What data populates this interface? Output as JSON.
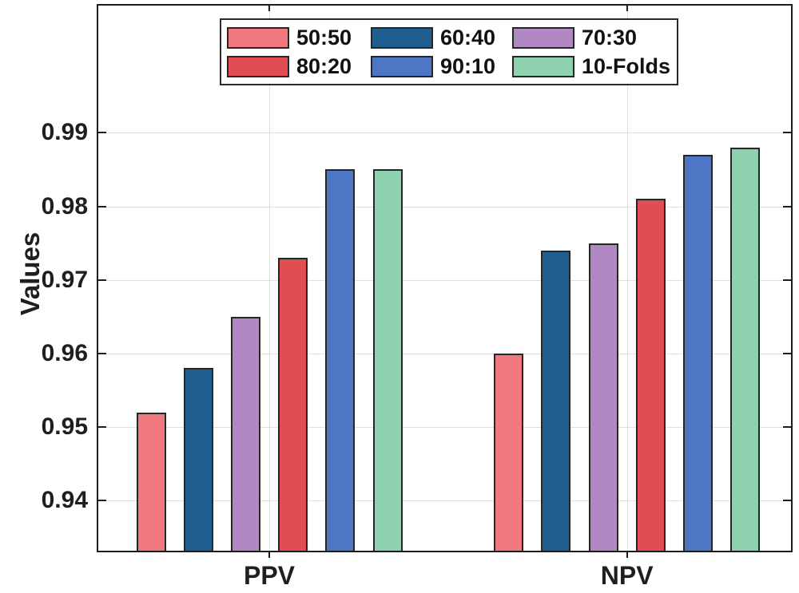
{
  "chart_data": {
    "type": "bar",
    "title": "",
    "xlabel": "",
    "ylabel": "Values",
    "categories": [
      "PPV",
      "NPV"
    ],
    "series": [
      {
        "name": "50:50",
        "color": "#F0797E",
        "values": [
          0.952,
          0.96
        ]
      },
      {
        "name": "60:40",
        "color": "#1F5F90",
        "values": [
          0.958,
          0.974
        ]
      },
      {
        "name": "70:30",
        "color": "#B088C4",
        "values": [
          0.965,
          0.975
        ]
      },
      {
        "name": "80:20",
        "color": "#E04E53",
        "values": [
          0.973,
          0.981
        ]
      },
      {
        "name": "90:10",
        "color": "#4D76C4",
        "values": [
          0.985,
          0.987
        ]
      },
      {
        "name": "10-Folds",
        "color": "#8FD1B0",
        "values": [
          0.985,
          0.988
        ]
      }
    ],
    "yticks": [
      0.94,
      0.95,
      0.96,
      0.97,
      0.98,
      0.99
    ],
    "ylim": [
      0.933,
      1.0075
    ],
    "grid": true,
    "legend_position": "top-center",
    "legend_rows": 2,
    "bar_edge_color": "#262626",
    "axis_color": "#1c1c1c",
    "grid_color": "#dedede"
  }
}
